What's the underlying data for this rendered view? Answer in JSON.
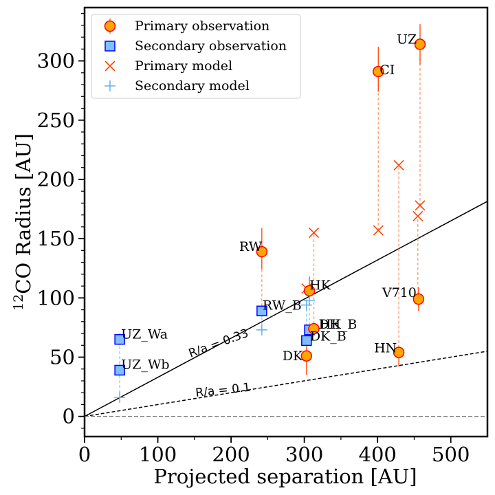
{
  "chart_data": {
    "type": "scatter",
    "title": "",
    "xlabel": "Projected separation [AU]",
    "ylabel_sup": "12",
    "ylabel_rest": "CO Radius [AU]",
    "xlim": [
      0,
      550
    ],
    "ylim": [
      -17,
      345
    ],
    "xticks": [
      0,
      100,
      200,
      300,
      400,
      500
    ],
    "yticks": [
      0,
      50,
      100,
      150,
      200,
      250,
      300
    ],
    "grid": false,
    "legend_position": "top-left",
    "legend": [
      {
        "label": "Primary observation",
        "marker": "circle"
      },
      {
        "label": "Secondary observation",
        "marker": "square"
      },
      {
        "label": "Primary model",
        "marker": "x"
      },
      {
        "label": "Secondary model",
        "marker": "plus"
      }
    ],
    "reference_lines": [
      {
        "label": "R/a = 0.33",
        "slope": 0.33,
        "style": "solid"
      },
      {
        "label": "R/a = 0.1",
        "slope": 0.1,
        "style": "dashed"
      },
      {
        "label": "",
        "slope": 0,
        "style": "dashed-gray"
      }
    ],
    "primary_observation": [
      {
        "name": "UZ",
        "x": 458,
        "y": 314,
        "err_lo": 17,
        "err_hi": 17
      },
      {
        "name": "CI",
        "x": 401,
        "y": 291,
        "err_lo": 17,
        "err_hi": 21
      },
      {
        "name": "RW",
        "x": 242,
        "y": 139,
        "err_lo": 15,
        "err_hi": 20
      },
      {
        "name": "HK",
        "x": 307,
        "y": 106,
        "err_lo": 6,
        "err_hi": 12
      },
      {
        "name": "V710",
        "x": 456,
        "y": 99,
        "err_lo": 10,
        "err_hi": 10
      },
      {
        "name": "DH",
        "x": 313,
        "y": 74,
        "err_lo": 5,
        "err_hi": 5
      },
      {
        "name": "HN",
        "x": 429,
        "y": 54,
        "err_lo": 12,
        "err_hi": 5
      },
      {
        "name": "DK",
        "x": 303,
        "y": 51,
        "err_lo": 16,
        "err_hi": 10
      }
    ],
    "secondary_observation": [
      {
        "name": "RW_B",
        "x": 242,
        "y": 89,
        "err_lo": 5,
        "err_hi": 5
      },
      {
        "name": "UZ_Wa",
        "x": 48,
        "y": 65,
        "err_lo": 5,
        "err_hi": 5
      },
      {
        "name": "UZ_Wb",
        "x": 48,
        "y": 39,
        "err_lo": 5,
        "err_hi": 5
      },
      {
        "name": "HK_B",
        "x": 307,
        "y": 73,
        "err_lo": 5,
        "err_hi": 5
      },
      {
        "name": "DK_B",
        "x": 303,
        "y": 64,
        "err_lo": 5,
        "err_hi": 5
      }
    ],
    "primary_model": [
      {
        "name": "UZ",
        "x": 458,
        "y": 178
      },
      {
        "name": "UZ",
        "x": 455,
        "y": 169
      },
      {
        "name": "CI",
        "x": 401,
        "y": 157
      },
      {
        "name": "HN",
        "x": 429,
        "y": 212
      },
      {
        "name": "DH",
        "x": 313,
        "y": 155
      },
      {
        "name": "HK",
        "x": 303,
        "y": 108
      },
      {
        "name": "RW",
        "x": 242,
        "y": 89
      }
    ],
    "secondary_model": [
      {
        "name": "UZ_W",
        "x": 48,
        "y": 16
      },
      {
        "name": "RW_B",
        "x": 242,
        "y": 73
      },
      {
        "name": "HK_B",
        "x": 307,
        "y": 98
      },
      {
        "name": "DK_B",
        "x": 303,
        "y": 94
      }
    ],
    "links": [
      {
        "x": 458,
        "y1": 178,
        "y2": 314,
        "kind": "primary"
      },
      {
        "x": 455,
        "y1": 99,
        "y2": 169,
        "kind": "primary"
      },
      {
        "x": 401,
        "y1": 157,
        "y2": 291,
        "kind": "primary"
      },
      {
        "x": 429,
        "y1": 54,
        "y2": 212,
        "kind": "primary"
      },
      {
        "x": 313,
        "y1": 74,
        "y2": 155,
        "kind": "primary"
      },
      {
        "x": 242,
        "y1": 89,
        "y2": 139,
        "kind": "primary"
      },
      {
        "x": 48,
        "y1": 16,
        "y2": 65,
        "kind": "secondary"
      },
      {
        "x": 242,
        "y1": 73,
        "y2": 89,
        "kind": "secondary"
      },
      {
        "x": 307,
        "y1": 73,
        "y2": 98,
        "kind": "secondary"
      },
      {
        "x": 303,
        "y1": 64,
        "y2": 94,
        "kind": "secondary"
      }
    ]
  },
  "colors": {
    "primary_fill": "#FFA500",
    "primary_edge": "#FF0000",
    "primary_err": "#FF4500",
    "primary_model": "#FF4500",
    "primary_link": "#FFA07A",
    "secondary_fill": "#7FBFFF",
    "secondary_edge": "#0000FF",
    "secondary_model": "#6CB4EE",
    "secondary_link": "#87CEFA",
    "axis": "#000000",
    "zero_line": "#808080"
  }
}
